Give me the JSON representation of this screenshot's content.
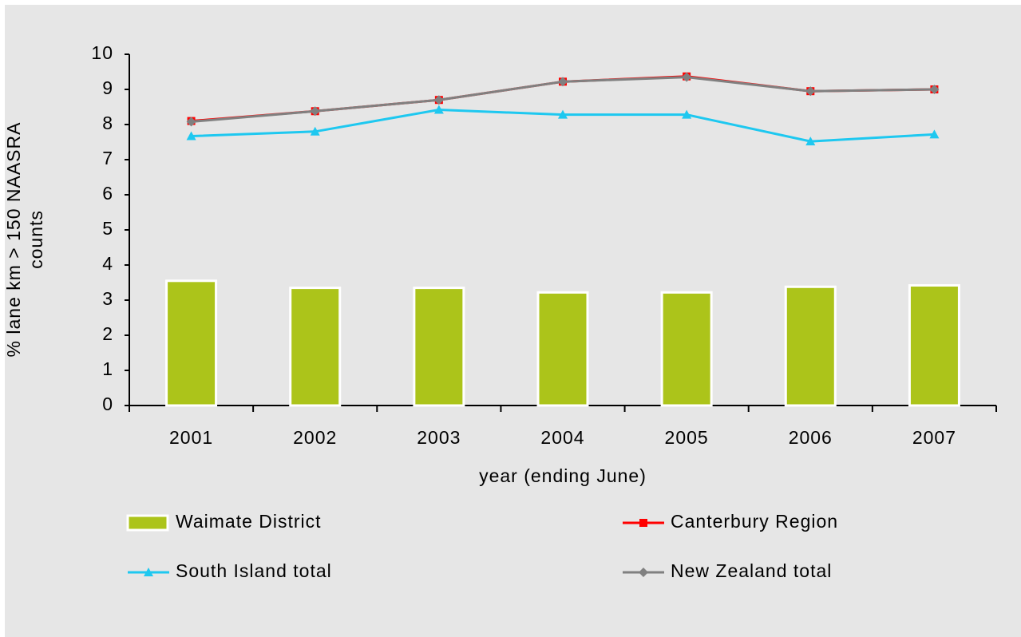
{
  "chart_data": {
    "type": "bar-line",
    "x_label": "year (ending June)",
    "y_label": "% lane km > 150 NAASRA counts",
    "categories": [
      "2001",
      "2002",
      "2003",
      "2004",
      "2005",
      "2006",
      "2007"
    ],
    "ylim": [
      0,
      10
    ],
    "yticks": [
      0,
      1,
      2,
      3,
      4,
      5,
      6,
      7,
      8,
      9,
      10
    ],
    "series": [
      {
        "name": "Waimate District",
        "type": "bar",
        "color": "#acc41a",
        "values": [
          3.55,
          3.35,
          3.35,
          3.22,
          3.22,
          3.38,
          3.42
        ]
      },
      {
        "name": "Canterbury Region",
        "type": "line",
        "marker": "square",
        "color": "#ff0000",
        "values": [
          8.1,
          8.38,
          8.7,
          9.22,
          9.37,
          8.95,
          9.0
        ]
      },
      {
        "name": "South Island total",
        "type": "line",
        "marker": "triangle",
        "color": "#1ec8f0",
        "values": [
          7.67,
          7.8,
          8.42,
          8.28,
          8.28,
          7.52,
          7.72
        ]
      },
      {
        "name": "New Zealand total",
        "type": "line",
        "marker": "diamond",
        "color": "#808080",
        "values": [
          8.08,
          8.38,
          8.7,
          9.22,
          9.35,
          8.95,
          9.0
        ]
      }
    ]
  }
}
